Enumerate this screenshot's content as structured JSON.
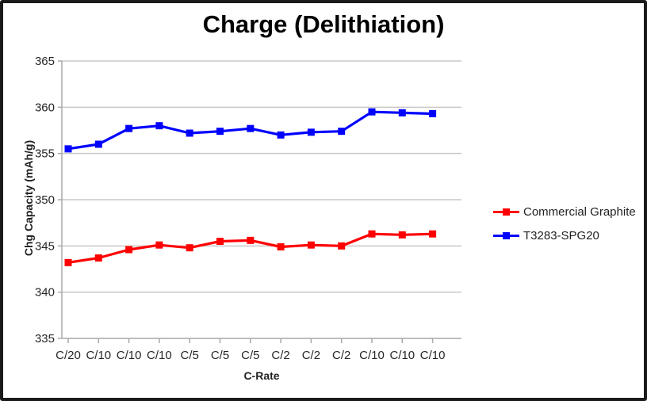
{
  "chart_data": {
    "type": "line",
    "title": "Charge (Delithiation)",
    "xlabel": "C-Rate",
    "ylabel": "Chg Capacity (mAh/g)",
    "categories": [
      "C/20",
      "C/10",
      "C/10",
      "C/10",
      "C/5",
      "C/5",
      "C/5",
      "C/2",
      "C/2",
      "C/2",
      "C/10",
      "C/10",
      "C/10"
    ],
    "series": [
      {
        "name": "Commercial Graphite",
        "color": "#ff0000",
        "marker": "square",
        "values": [
          343.2,
          343.7,
          344.6,
          345.1,
          344.8,
          345.5,
          345.6,
          344.9,
          345.1,
          345.0,
          346.3,
          346.2,
          346.3
        ]
      },
      {
        "name": "T3283-SPG20",
        "color": "#0000ff",
        "marker": "square",
        "values": [
          355.5,
          356.0,
          357.7,
          358.0,
          357.2,
          357.4,
          357.7,
          357.0,
          357.3,
          357.4,
          359.5,
          359.4,
          359.3
        ]
      }
    ],
    "ylim": [
      335,
      365
    ],
    "ytick_step": 5,
    "yticks": [
      335,
      340,
      345,
      350,
      355,
      360,
      365
    ],
    "grid": "horizontal",
    "legend_position": "right",
    "colors": {
      "gridline": "#c8c8c8",
      "axis": "#a9a9a9",
      "tick_label": "#262626",
      "title": "#000000"
    }
  }
}
